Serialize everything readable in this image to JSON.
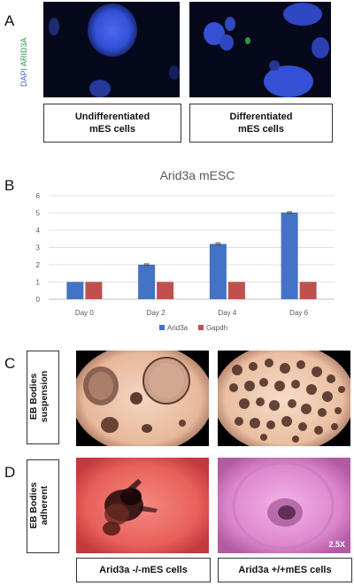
{
  "panels": {
    "A": {
      "letter": "A",
      "stain_label_dapi": "DAPI",
      "stain_label_arid": "ARID3A",
      "captions": [
        "Undifferentiated\nmES cells",
        "Differentiated\nmES cells"
      ],
      "colors": {
        "dapi": "#2f4fd6",
        "arid": "#2c9a48",
        "background": "#06081c"
      }
    },
    "B": {
      "letter": "B"
    },
    "C": {
      "letter": "C",
      "side_label": "EB Bodies\nsuspension"
    },
    "D": {
      "letter": "D",
      "side_label": "EB Bodies\nadherent",
      "magnification": "2.5X"
    },
    "bottom_captions": [
      "Arid3a -/-mES cells",
      "Arid3a +/+mES cells"
    ]
  },
  "chart_data": {
    "type": "bar",
    "title": "Arid3a mESC",
    "categories": [
      "Day 0",
      "Day 2",
      "Day 4",
      "Day 6"
    ],
    "series": [
      {
        "name": "Arid3a",
        "values": [
          1,
          2,
          3.2,
          5.02
        ],
        "color": "#4472c4"
      },
      {
        "name": "Gapdh",
        "values": [
          1,
          1,
          1,
          1
        ],
        "color": "#c0504d"
      }
    ],
    "ylim": [
      0,
      6
    ],
    "yticks": [
      "0",
      "1",
      "2",
      "3",
      "4",
      "5",
      "6"
    ],
    "grid": true,
    "legend": "bottom"
  }
}
